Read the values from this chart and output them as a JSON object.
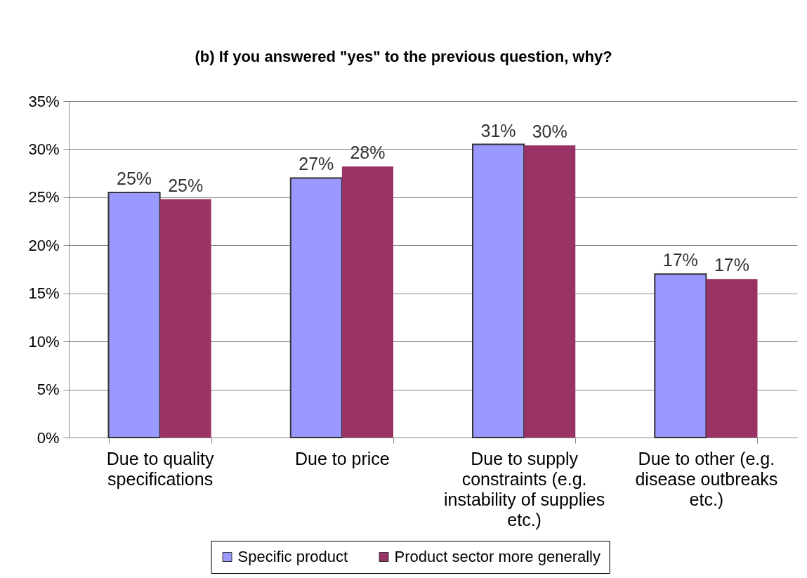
{
  "chart_data": {
    "type": "bar",
    "title": "(b) If you answered \"yes\" to the previous question, why?",
    "categories": [
      "Due to quality specifications",
      "Due to price",
      "Due to supply constraints (e.g. instability of supplies etc.)",
      "Due to other (e.g. disease outbreaks etc.)"
    ],
    "series": [
      {
        "name": "Specific product",
        "color": "#9999ff",
        "values": [
          25.5,
          27.0,
          30.5,
          17.0
        ],
        "value_labels": [
          "25%",
          "27%",
          "31%",
          "17%"
        ]
      },
      {
        "name": "Product sector more generally",
        "color": "#993366",
        "values": [
          24.8,
          28.2,
          30.4,
          16.5
        ],
        "value_labels": [
          "25%",
          "28%",
          "30%",
          "17%"
        ]
      }
    ],
    "ylim": [
      0,
      35
    ],
    "yticks": [
      {
        "value": 0,
        "label": "0%"
      },
      {
        "value": 5,
        "label": "5%"
      },
      {
        "value": 10,
        "label": "10%"
      },
      {
        "value": 15,
        "label": "15%"
      },
      {
        "value": 20,
        "label": "20%"
      },
      {
        "value": 25,
        "label": "25%"
      },
      {
        "value": 30,
        "label": "30%"
      },
      {
        "value": 35,
        "label": "35%"
      }
    ],
    "grid": "y",
    "legend": "bottom"
  }
}
